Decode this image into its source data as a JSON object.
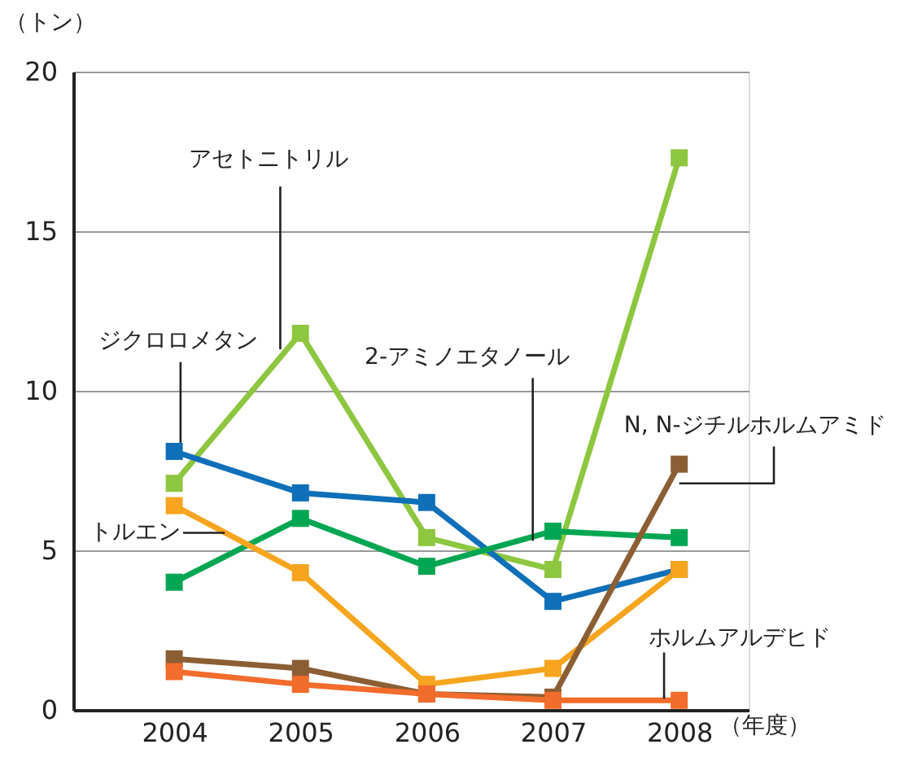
{
  "chart_data": {
    "type": "line",
    "ylabel": "（トン）",
    "xlabel": "（年度）",
    "x": [
      2004,
      2005,
      2006,
      2007,
      2008
    ],
    "xlim": [
      2003.2,
      2008.55
    ],
    "xticks": [
      2004,
      2005,
      2006,
      2007,
      2008
    ],
    "ylim": [
      0,
      20
    ],
    "yticks": [
      0,
      5,
      10,
      15,
      20
    ],
    "grid": "y",
    "marker": "square",
    "line_style": "solid",
    "series": [
      {
        "name": "アセトニトリル",
        "color": "#8dc63f",
        "values": [
          7.1,
          11.8,
          5.4,
          4.4,
          17.3
        ]
      },
      {
        "name": "ジクロロメタン",
        "color": "#0f6fb8",
        "values": [
          8.1,
          6.8,
          6.5,
          3.4,
          4.4
        ]
      },
      {
        "name": "2-アミノエタノール",
        "color": "#00a651",
        "values": [
          4.0,
          6.0,
          4.5,
          5.6,
          5.4
        ]
      },
      {
        "name": "トルエン",
        "color": "#f7a51f",
        "values": [
          6.4,
          4.3,
          0.8,
          1.3,
          4.4
        ]
      },
      {
        "name": "N, N-ジチルホルムアミド",
        "color": "#8b5e34",
        "values": [
          1.6,
          1.3,
          0.5,
          0.4,
          7.7
        ]
      },
      {
        "name": "ホルムアルデヒド",
        "color": "#f26c2b",
        "values": [
          1.2,
          0.8,
          0.5,
          0.3,
          0.3
        ]
      }
    ]
  }
}
